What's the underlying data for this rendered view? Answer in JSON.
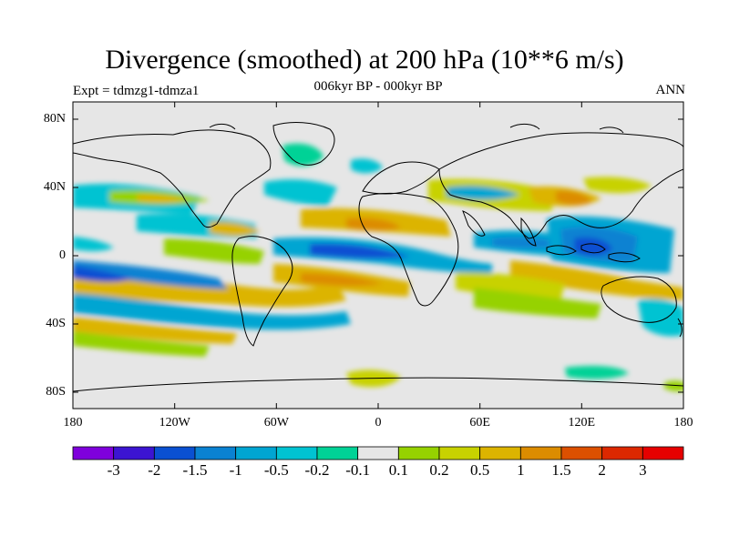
{
  "title": "Divergence (smoothed) at 200 hPa (10**6 m/s)",
  "left_label": "Expt = tdmzg1-tdmza1",
  "center_label": "006kyr BP - 000kyr BP",
  "right_label": "ANN",
  "lat_ticks": [
    "80N",
    "40N",
    "0",
    "40S",
    "80S"
  ],
  "lon_ticks": [
    "180",
    "120W",
    "60W",
    "0",
    "60E",
    "120E",
    "180"
  ],
  "colorbar": {
    "labels": [
      "-3",
      "-2",
      "-1.5",
      "-1",
      "-0.5",
      "-0.2",
      "-0.1",
      "0.1",
      "0.2",
      "0.5",
      "1",
      "1.5",
      "2",
      "3"
    ],
    "colors": [
      "#7f00dc",
      "#3c14d2",
      "#0a50d2",
      "#0a82d2",
      "#00a5d2",
      "#00c3d2",
      "#00d296",
      "#e6e6e6",
      "#96d200",
      "#c8d200",
      "#dcb400",
      "#dc8c00",
      "#dc5000",
      "#dc2800",
      "#e60000"
    ]
  },
  "colors": {
    "land_outline": "#000000",
    "background": "#e6e6e6"
  }
}
